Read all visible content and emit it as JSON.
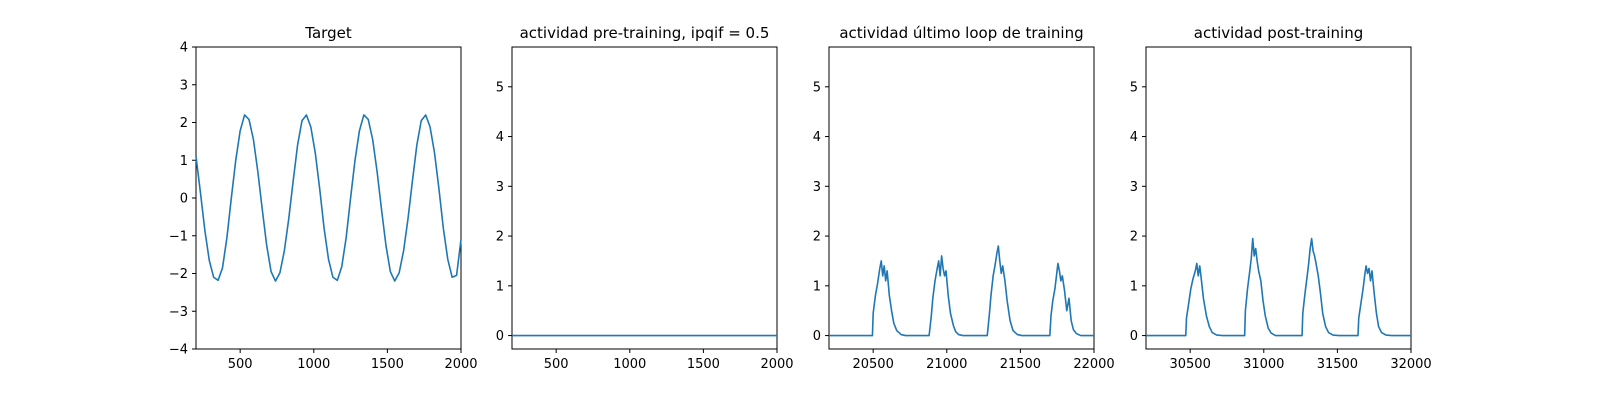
{
  "colors": {
    "series": "#1f77b4",
    "axis": "#000000",
    "background": "#ffffff"
  },
  "chart_data": [
    {
      "type": "line",
      "title": "Target",
      "xlabel": "",
      "ylabel": "",
      "xlim": [
        200,
        2000
      ],
      "ylim": [
        -4,
        4
      ],
      "xticks": [
        500,
        1000,
        1500,
        2000
      ],
      "yticks": [
        -4,
        -3,
        -2,
        -1,
        0,
        1,
        2,
        3,
        4
      ],
      "grid": false,
      "legend": "none",
      "series": [
        {
          "x": [
            200,
            230,
            260,
            290,
            320,
            350,
            380,
            410,
            440,
            470,
            500,
            530,
            560,
            590,
            620,
            650,
            680,
            710,
            740,
            770,
            800,
            830,
            860,
            890,
            920,
            950,
            980,
            1010,
            1040,
            1070,
            1100,
            1130,
            1160,
            1190,
            1220,
            1250,
            1280,
            1310,
            1340,
            1370,
            1400,
            1430,
            1460,
            1490,
            1520,
            1550,
            1580,
            1610,
            1640,
            1670,
            1700,
            1730,
            1760,
            1790,
            1820,
            1850,
            1880,
            1910,
            1940,
            1970,
            2000
          ],
          "y": [
            1.1,
            0.15,
            -0.85,
            -1.65,
            -2.1,
            -2.18,
            -1.85,
            -1.05,
            0.0,
            1.0,
            1.78,
            2.2,
            2.08,
            1.55,
            0.7,
            -0.3,
            -1.25,
            -1.95,
            -2.2,
            -1.98,
            -1.4,
            -0.55,
            0.45,
            1.4,
            2.05,
            2.2,
            1.88,
            1.2,
            0.25,
            -0.8,
            -1.62,
            -2.1,
            -2.18,
            -1.82,
            -1.05,
            0.0,
            1.0,
            1.78,
            2.2,
            2.08,
            1.55,
            0.7,
            -0.3,
            -1.25,
            -1.95,
            -2.2,
            -1.98,
            -1.4,
            -0.55,
            0.45,
            1.4,
            2.05,
            2.2,
            1.88,
            1.2,
            0.25,
            -0.8,
            -1.62,
            -2.1,
            -2.05,
            -1.1
          ]
        }
      ]
    },
    {
      "type": "line",
      "title": "actividad pre-training, ipqif = 0.5",
      "xlabel": "",
      "ylabel": "",
      "xlim": [
        200,
        2000
      ],
      "ylim": [
        -0.27,
        5.8
      ],
      "xticks": [
        500,
        1000,
        1500,
        2000
      ],
      "yticks": [
        0,
        1,
        2,
        3,
        4,
        5
      ],
      "grid": false,
      "legend": "none",
      "series": [
        {
          "x": [
            200,
            2000
          ],
          "y": [
            0,
            0
          ]
        }
      ]
    },
    {
      "type": "line",
      "title": "actividad último loop de training",
      "xlabel": "",
      "ylabel": "",
      "xlim": [
        20200,
        22000
      ],
      "ylim": [
        -0.27,
        5.8
      ],
      "xticks": [
        20500,
        21000,
        21500,
        22000
      ],
      "yticks": [
        0,
        1,
        2,
        3,
        4,
        5
      ],
      "grid": false,
      "legend": "none",
      "series": [
        {
          "x": [
            20200,
            20495,
            20500,
            20515,
            20530,
            20545,
            20555,
            20565,
            20575,
            20585,
            20595,
            20610,
            20625,
            20640,
            20660,
            20690,
            20720,
            20880,
            20895,
            20905,
            20920,
            20935,
            20945,
            20955,
            20965,
            20975,
            20985,
            20995,
            21010,
            21025,
            21045,
            21060,
            21080,
            21110,
            21140,
            21275,
            21290,
            21300,
            21315,
            21330,
            21340,
            21350,
            21360,
            21370,
            21380,
            21395,
            21410,
            21430,
            21450,
            21480,
            21510,
            21700,
            21708,
            21720,
            21735,
            21745,
            21755,
            21765,
            21775,
            21785,
            21800,
            21815,
            21830,
            21845,
            21860,
            21880,
            21910,
            21950,
            22000
          ],
          "y": [
            0,
            0,
            0.45,
            0.8,
            1.05,
            1.35,
            1.5,
            1.2,
            1.4,
            1.1,
            1.3,
            0.8,
            0.5,
            0.25,
            0.1,
            0.02,
            0,
            0,
            0.4,
            0.75,
            1.1,
            1.35,
            1.5,
            1.2,
            1.6,
            1.35,
            1.2,
            1.3,
            0.8,
            0.45,
            0.2,
            0.08,
            0.02,
            0,
            0,
            0,
            0.45,
            0.8,
            1.2,
            1.45,
            1.65,
            1.8,
            1.5,
            1.25,
            1.4,
            1.1,
            0.7,
            0.3,
            0.1,
            0.02,
            0,
            0,
            0.4,
            0.7,
            0.95,
            1.2,
            1.45,
            1.3,
            1.1,
            1.2,
            0.9,
            0.5,
            0.75,
            0.3,
            0.12,
            0.04,
            0,
            0,
            0
          ]
        }
      ]
    },
    {
      "type": "line",
      "title": "actividad post-training",
      "xlabel": "",
      "ylabel": "",
      "xlim": [
        30200,
        32000
      ],
      "ylim": [
        -0.27,
        5.8
      ],
      "xticks": [
        30500,
        31000,
        31500,
        32000
      ],
      "yticks": [
        0,
        1,
        2,
        3,
        4,
        5
      ],
      "grid": false,
      "legend": "none",
      "series": [
        {
          "x": [
            30200,
            30470,
            30475,
            30490,
            30505,
            30520,
            30535,
            30545,
            30555,
            30565,
            30575,
            30590,
            30610,
            30630,
            30650,
            30680,
            30720,
            30870,
            30875,
            30890,
            30905,
            30915,
            30925,
            30935,
            30945,
            30955,
            30965,
            30980,
            30995,
            31010,
            31030,
            31050,
            31080,
            31120,
            31260,
            31265,
            31280,
            31295,
            31305,
            31315,
            31325,
            31335,
            31345,
            31355,
            31370,
            31385,
            31400,
            31420,
            31440,
            31470,
            31510,
            31640,
            31645,
            31660,
            31675,
            31685,
            31695,
            31705,
            31715,
            31725,
            31735,
            31750,
            31765,
            31780,
            31800,
            31830,
            31870,
            32000
          ],
          "y": [
            0,
            0,
            0.35,
            0.65,
            0.95,
            1.15,
            1.3,
            1.45,
            1.2,
            1.4,
            1.15,
            0.75,
            0.4,
            0.18,
            0.06,
            0.01,
            0,
            0,
            0.5,
            0.95,
            1.3,
            1.55,
            1.95,
            1.6,
            1.75,
            1.5,
            1.3,
            1.1,
            0.7,
            0.4,
            0.15,
            0.05,
            0,
            0,
            0,
            0.45,
            0.85,
            1.2,
            1.45,
            1.75,
            1.95,
            1.7,
            1.6,
            1.45,
            1.2,
            0.85,
            0.45,
            0.18,
            0.06,
            0.01,
            0,
            0,
            0.35,
            0.65,
            0.95,
            1.2,
            1.4,
            1.25,
            1.35,
            1.1,
            1.3,
            0.85,
            0.45,
            0.18,
            0.06,
            0.01,
            0,
            0
          ]
        }
      ]
    }
  ]
}
